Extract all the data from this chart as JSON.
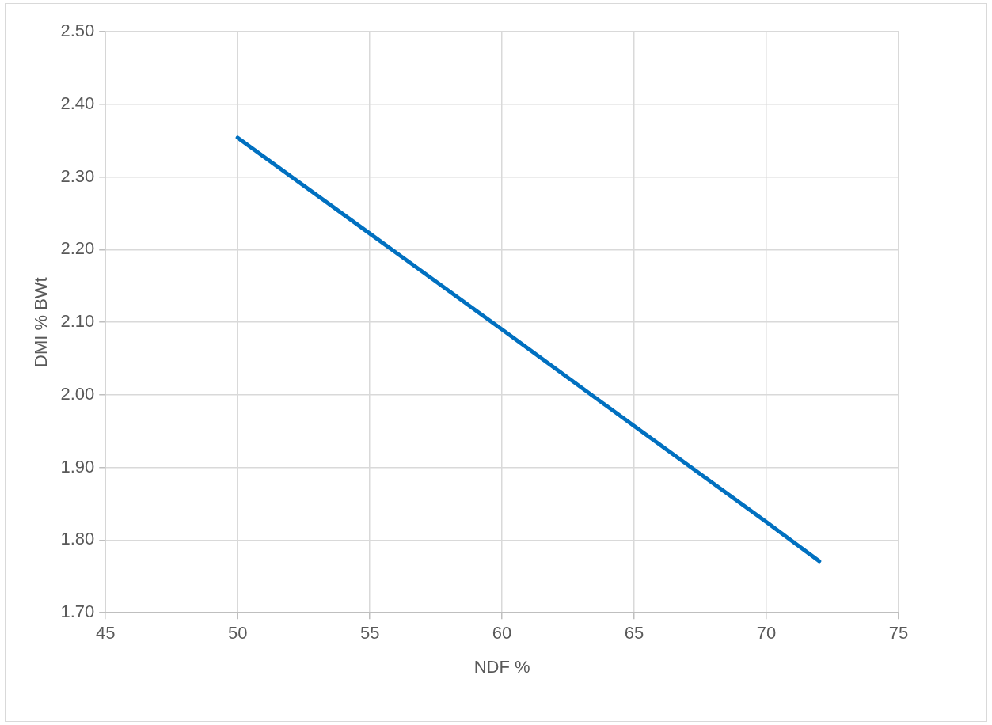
{
  "chart_data": {
    "type": "line",
    "xlabel": "NDF %",
    "ylabel": "DMI % BWt",
    "x": [
      50,
      55,
      60,
      65,
      70,
      72
    ],
    "series": [
      {
        "color": "#0070c0",
        "values": [
          2.354,
          2.222,
          2.09,
          1.957,
          1.825,
          1.771
        ]
      }
    ],
    "xlim": [
      45,
      75
    ],
    "xticks": [
      45,
      50,
      55,
      60,
      65,
      70,
      75
    ],
    "ylim": [
      1.7,
      2.5
    ],
    "yticks": [
      {
        "value": 1.7,
        "label": "1.70"
      },
      {
        "value": 1.8,
        "label": "1.80"
      },
      {
        "value": 1.9,
        "label": "1.90"
      },
      {
        "value": 2.0,
        "label": "2.00"
      },
      {
        "value": 2.1,
        "label": "2.10"
      },
      {
        "value": 2.2,
        "label": "2.20"
      },
      {
        "value": 2.3,
        "label": "2.30"
      },
      {
        "value": 2.4,
        "label": "2.40"
      },
      {
        "value": 2.5,
        "label": "2.50"
      }
    ],
    "grid": true,
    "legend": false,
    "marker": "none",
    "line_style": "solid"
  }
}
